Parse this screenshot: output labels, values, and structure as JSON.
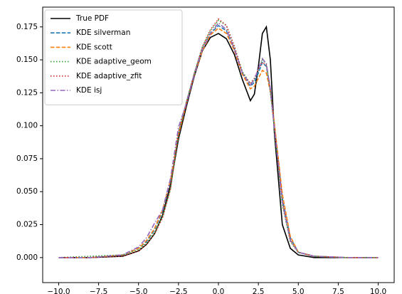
{
  "chart_data": {
    "type": "line",
    "x": [
      -10,
      -8,
      -6,
      -5,
      -4.5,
      -4,
      -3.5,
      -3,
      -2.5,
      -2,
      -1.5,
      -1,
      -0.5,
      0,
      0.5,
      1,
      1.5,
      2,
      2.25,
      2.5,
      2.75,
      3,
      3.25,
      3.5,
      4,
      4.5,
      5,
      6,
      8,
      10
    ],
    "series": [
      {
        "name": "True PDF",
        "color": "#000000",
        "linestyle": "solid",
        "values": [
          0,
          0,
          0.001,
          0.005,
          0.01,
          0.018,
          0.032,
          0.055,
          0.09,
          0.115,
          0.138,
          0.157,
          0.167,
          0.17,
          0.166,
          0.154,
          0.135,
          0.119,
          0.124,
          0.145,
          0.17,
          0.175,
          0.15,
          0.095,
          0.025,
          0.007,
          0.002,
          0,
          0,
          0
        ]
      },
      {
        "name": "KDE silverman",
        "color": "#1f77b4",
        "linestyle": "dashed",
        "values": [
          0,
          0,
          0.002,
          0.007,
          0.012,
          0.021,
          0.035,
          0.058,
          0.093,
          0.118,
          0.14,
          0.158,
          0.17,
          0.176,
          0.172,
          0.158,
          0.14,
          0.13,
          0.133,
          0.14,
          0.148,
          0.145,
          0.128,
          0.1,
          0.045,
          0.015,
          0.004,
          0.001,
          0,
          0
        ]
      },
      {
        "name": "KDE scott",
        "color": "#ff7f0e",
        "linestyle": "dashed",
        "values": [
          0,
          0,
          0.002,
          0.007,
          0.013,
          0.022,
          0.036,
          0.059,
          0.093,
          0.117,
          0.139,
          0.157,
          0.169,
          0.174,
          0.17,
          0.157,
          0.139,
          0.128,
          0.13,
          0.136,
          0.142,
          0.14,
          0.126,
          0.102,
          0.048,
          0.016,
          0.004,
          0.001,
          0,
          0
        ]
      },
      {
        "name": "KDE adaptive_geom",
        "color": "#2ca02c",
        "linestyle": "dotted",
        "values": [
          0,
          0.001,
          0.002,
          0.006,
          0.011,
          0.019,
          0.031,
          0.052,
          0.095,
          0.118,
          0.14,
          0.16,
          0.172,
          0.18,
          0.176,
          0.16,
          0.141,
          0.132,
          0.135,
          0.142,
          0.15,
          0.147,
          0.125,
          0.098,
          0.04,
          0.012,
          0.004,
          0.001,
          0,
          0
        ]
      },
      {
        "name": "KDE adaptive_zfit",
        "color": "#d62728",
        "linestyle": "dotted",
        "values": [
          0,
          0,
          0.001,
          0.005,
          0.01,
          0.018,
          0.03,
          0.052,
          0.095,
          0.118,
          0.14,
          0.16,
          0.173,
          0.181,
          0.176,
          0.16,
          0.14,
          0.132,
          0.136,
          0.143,
          0.148,
          0.146,
          0.127,
          0.1,
          0.042,
          0.013,
          0.004,
          0.001,
          0,
          0
        ]
      },
      {
        "name": "KDE isj",
        "color": "#9467bd",
        "linestyle": "dashdot",
        "values": [
          0,
          0,
          0.002,
          0.008,
          0.015,
          0.026,
          0.036,
          0.06,
          0.099,
          0.117,
          0.139,
          0.158,
          0.17,
          0.178,
          0.173,
          0.158,
          0.14,
          0.131,
          0.135,
          0.143,
          0.151,
          0.147,
          0.128,
          0.098,
          0.042,
          0.013,
          0.004,
          0.001,
          0,
          0
        ]
      }
    ],
    "xlim": [
      -11,
      11
    ],
    "ylim": [
      -0.019,
      0.19
    ],
    "xticks": [
      {
        "value": -10,
        "label": "−10.0"
      },
      {
        "value": -7.5,
        "label": "−7.5"
      },
      {
        "value": -5,
        "label": "−5.0"
      },
      {
        "value": -2.5,
        "label": "−2.5"
      },
      {
        "value": 0,
        "label": "0.0"
      },
      {
        "value": 2.5,
        "label": "2.5"
      },
      {
        "value": 5,
        "label": "5.0"
      },
      {
        "value": 7.5,
        "label": "7.5"
      },
      {
        "value": 10,
        "label": "10.0"
      }
    ],
    "yticks": [
      {
        "value": 0,
        "label": "0.000"
      },
      {
        "value": 0.025,
        "label": "0.025"
      },
      {
        "value": 0.05,
        "label": "0.050"
      },
      {
        "value": 0.075,
        "label": "0.075"
      },
      {
        "value": 0.1,
        "label": "0.100"
      },
      {
        "value": 0.125,
        "label": "0.125"
      },
      {
        "value": 0.15,
        "label": "0.150"
      },
      {
        "value": 0.175,
        "label": "0.175"
      }
    ],
    "grid": false,
    "legend": "upper-left"
  }
}
